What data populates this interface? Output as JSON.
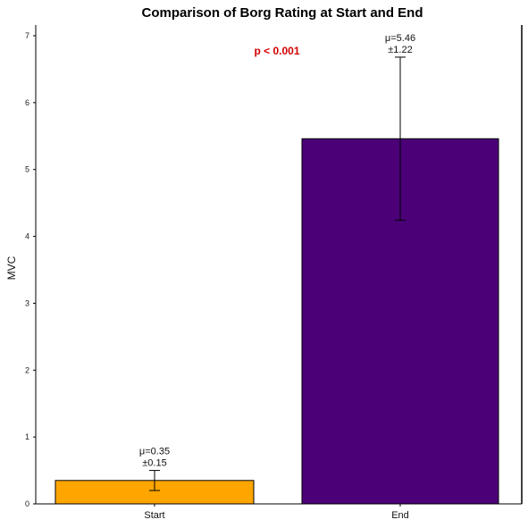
{
  "chart_data": {
    "type": "bar",
    "title": "Comparison of Borg Rating at Start and End",
    "ylabel": "MVC",
    "xlabel": "",
    "categories": [
      "Start",
      "End"
    ],
    "values": [
      0.35,
      5.46
    ],
    "errors": [
      0.15,
      1.22
    ],
    "annotations": [
      {
        "line1": "μ=0.35",
        "line2": "±0.15"
      },
      {
        "line1": "μ=5.46",
        "line2": "±1.22"
      }
    ],
    "bar_colors": [
      "#FFA500",
      "#4B0078"
    ],
    "ylim": [
      0,
      7
    ],
    "yticks": [
      "0",
      "1",
      "2",
      "3",
      "4",
      "5",
      "6",
      "7"
    ],
    "significance": {
      "label": "p < 0.001",
      "color": "#D00000"
    },
    "grid": false
  }
}
